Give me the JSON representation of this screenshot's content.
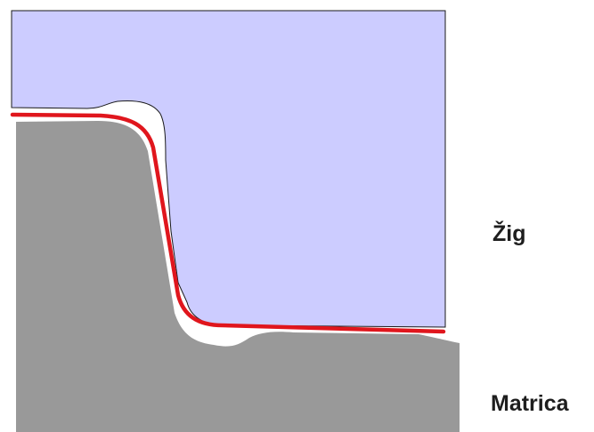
{
  "labels": {
    "punch": "Žig",
    "die": "Matrica"
  },
  "colors": {
    "punch_fill": "#ccccff",
    "die_fill": "#999999",
    "sheet_line": "#e0161d",
    "outline": "#1a1a1a",
    "background": "#ffffff"
  }
}
